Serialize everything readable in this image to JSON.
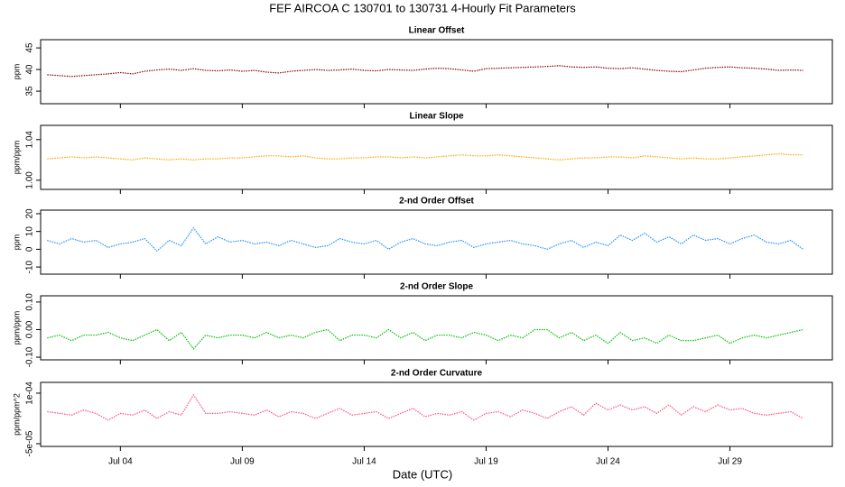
{
  "title": "FEF   AIRCOA C   130701 to 130731   4-Hourly Fit Parameters",
  "x_label": "Date (UTC)",
  "chart_data": [
    {
      "type": "line",
      "title": "Linear Offset",
      "y_label": "ppm",
      "x": [
        1,
        1.5,
        2,
        2.5,
        3,
        3.5,
        4,
        4.5,
        5,
        5.5,
        6,
        6.5,
        7,
        7.5,
        8,
        8.5,
        9,
        9.5,
        10,
        10.5,
        11,
        11.5,
        12,
        12.5,
        13,
        13.5,
        14,
        14.5,
        15,
        15.5,
        16,
        16.5,
        17,
        17.5,
        18,
        18.5,
        19,
        19.5,
        20,
        20.5,
        21,
        21.5,
        22,
        22.5,
        23,
        23.5,
        24,
        24.5,
        25,
        25.5,
        26,
        26.5,
        27,
        27.5,
        28,
        28.5,
        29,
        29.5,
        30,
        30.5,
        31,
        31.5,
        32
      ],
      "values": [
        38.8,
        38.6,
        38.4,
        38.6,
        38.8,
        39.0,
        39.3,
        39.0,
        39.6,
        39.9,
        40.1,
        39.8,
        40.2,
        39.8,
        39.7,
        39.9,
        39.6,
        39.8,
        39.4,
        39.2,
        39.6,
        39.8,
        40.0,
        39.8,
        39.9,
        40.1,
        39.8,
        39.7,
        40.0,
        39.9,
        39.8,
        40.1,
        40.3,
        40.2,
        39.9,
        39.6,
        40.2,
        40.3,
        40.4,
        40.5,
        40.6,
        40.7,
        40.9,
        40.6,
        40.5,
        40.6,
        40.3,
        40.2,
        40.4,
        40.1,
        39.8,
        39.6,
        39.5,
        39.9,
        40.3,
        40.5,
        40.6,
        40.4,
        40.3,
        40.1,
        39.8,
        39.9,
        39.8
      ],
      "color": "#8b0000",
      "xlim": [
        0.73,
        33.2
      ],
      "ylim": [
        32.1,
        46.9
      ],
      "yticks": [
        35,
        40,
        45
      ]
    },
    {
      "type": "line",
      "title": "Linear Slope",
      "y_label": "ppm/ppm",
      "x": [
        1,
        1.5,
        2,
        2.5,
        3,
        3.5,
        4,
        4.5,
        5,
        5.5,
        6,
        6.5,
        7,
        7.5,
        8,
        8.5,
        9,
        9.5,
        10,
        10.5,
        11,
        11.5,
        12,
        12.5,
        13,
        13.5,
        14,
        14.5,
        15,
        15.5,
        16,
        16.5,
        17,
        17.5,
        18,
        18.5,
        19,
        19.5,
        20,
        20.5,
        21,
        21.5,
        22,
        22.5,
        23,
        23.5,
        24,
        24.5,
        25,
        25.5,
        26,
        26.5,
        27,
        27.5,
        28,
        28.5,
        29,
        29.5,
        30,
        30.5,
        31,
        31.5,
        32
      ],
      "values": [
        1.021,
        1.022,
        1.023,
        1.022,
        1.023,
        1.022,
        1.021,
        1.02,
        1.022,
        1.021,
        1.02,
        1.021,
        1.02,
        1.021,
        1.021,
        1.022,
        1.022,
        1.023,
        1.024,
        1.024,
        1.023,
        1.024,
        1.022,
        1.021,
        1.021,
        1.022,
        1.022,
        1.023,
        1.023,
        1.022,
        1.023,
        1.022,
        1.023,
        1.024,
        1.025,
        1.024,
        1.024,
        1.025,
        1.024,
        1.023,
        1.022,
        1.021,
        1.02,
        1.021,
        1.022,
        1.022,
        1.023,
        1.023,
        1.022,
        1.024,
        1.023,
        1.022,
        1.021,
        1.022,
        1.021,
        1.021,
        1.022,
        1.023,
        1.024,
        1.025,
        1.026,
        1.025,
        1.025
      ],
      "color": "#ffa500",
      "xlim": [
        0.73,
        33.2
      ],
      "ylim": [
        0.991,
        1.054
      ],
      "yticks": [
        {
          "value": 1,
          "label": "1.00"
        },
        {
          "value": 1.04,
          "label": "1.04"
        }
      ]
    },
    {
      "type": "line",
      "title": "2-nd Order Offset",
      "y_label": "ppm",
      "x": [
        1,
        1.5,
        2,
        2.5,
        3,
        3.5,
        4,
        4.5,
        5,
        5.5,
        6,
        6.5,
        7,
        7.5,
        8,
        8.5,
        9,
        9.5,
        10,
        10.5,
        11,
        11.5,
        12,
        12.5,
        13,
        13.5,
        14,
        14.5,
        15,
        15.5,
        16,
        16.5,
        17,
        17.5,
        18,
        18.5,
        19,
        19.5,
        20,
        20.5,
        21,
        21.5,
        22,
        22.5,
        23,
        23.5,
        24,
        24.5,
        25,
        25.5,
        26,
        26.5,
        27,
        27.5,
        28,
        28.5,
        29,
        29.5,
        30,
        30.5,
        31,
        31.5,
        32
      ],
      "values": [
        5,
        3,
        6,
        4,
        5,
        1,
        3,
        4,
        6,
        -1,
        5,
        2,
        12,
        3,
        7,
        4,
        5,
        3,
        4,
        2,
        5,
        3,
        1,
        2,
        6,
        4,
        3,
        5,
        0,
        4,
        6,
        3,
        2,
        4,
        5,
        1,
        3,
        4,
        5,
        3,
        2,
        0,
        3,
        5,
        1,
        4,
        2,
        8,
        5,
        9,
        4,
        7,
        3,
        8,
        5,
        6,
        3,
        6,
        8,
        4,
        3,
        5,
        0
      ],
      "color": "#1e90ff",
      "xlim": [
        0.73,
        33.2
      ],
      "ylim": [
        -14,
        22
      ],
      "yticks": [
        -10,
        0,
        10,
        20
      ]
    },
    {
      "type": "line",
      "title": "2-nd Order Slope",
      "y_label": "ppm/ppm",
      "x": [
        1,
        1.5,
        2,
        2.5,
        3,
        3.5,
        4,
        4.5,
        5,
        5.5,
        6,
        6.5,
        7,
        7.5,
        8,
        8.5,
        9,
        9.5,
        10,
        10.5,
        11,
        11.5,
        12,
        12.5,
        13,
        13.5,
        14,
        14.5,
        15,
        15.5,
        16,
        16.5,
        17,
        17.5,
        18,
        18.5,
        19,
        19.5,
        20,
        20.5,
        21,
        21.5,
        22,
        22.5,
        23,
        23.5,
        24,
        24.5,
        25,
        25.5,
        26,
        26.5,
        27,
        27.5,
        28,
        28.5,
        29,
        29.5,
        30,
        30.5,
        31,
        31.5,
        32
      ],
      "values": [
        -0.03,
        -0.02,
        -0.04,
        -0.02,
        -0.02,
        -0.01,
        -0.03,
        -0.04,
        -0.02,
        0,
        -0.04,
        -0.01,
        -0.07,
        -0.02,
        -0.03,
        -0.02,
        -0.02,
        -0.03,
        -0.01,
        -0.03,
        -0.02,
        -0.03,
        -0.01,
        0,
        -0.04,
        -0.02,
        -0.02,
        -0.03,
        0,
        -0.03,
        -0.01,
        -0.04,
        -0.02,
        -0.02,
        -0.03,
        -0.01,
        -0.02,
        -0.04,
        -0.02,
        -0.03,
        0,
        0,
        -0.03,
        -0.01,
        -0.04,
        -0.02,
        -0.05,
        -0.01,
        -0.04,
        -0.03,
        -0.05,
        -0.02,
        -0.04,
        -0.04,
        -0.03,
        -0.02,
        -0.05,
        -0.03,
        -0.02,
        -0.03,
        -0.02,
        -0.01,
        0
      ],
      "color": "#00c000",
      "xlim": [
        0.73,
        33.2
      ],
      "ylim": [
        -0.1097,
        0.1226
      ],
      "yticks": [
        {
          "value": -0.1,
          "label": "-0.10"
        },
        {
          "value": 0,
          "label": "0.00"
        },
        {
          "value": 0.1,
          "label": "0.10"
        }
      ]
    },
    {
      "type": "line",
      "title": "2-nd Order Curvature",
      "y_label": "ppm/ppm^2",
      "x": [
        1,
        1.5,
        2,
        2.5,
        3,
        3.5,
        4,
        4.5,
        5,
        5.5,
        6,
        6.5,
        7,
        7.5,
        8,
        8.5,
        9,
        9.5,
        10,
        10.5,
        11,
        11.5,
        12,
        12.5,
        13,
        13.5,
        14,
        14.5,
        15,
        15.5,
        16,
        16.5,
        17,
        17.5,
        18,
        18.5,
        19,
        19.5,
        20,
        20.5,
        21,
        21.5,
        22,
        22.5,
        23,
        23.5,
        24,
        24.5,
        25,
        25.5,
        26,
        26.5,
        27,
        27.5,
        28,
        28.5,
        29,
        29.5,
        30,
        30.5,
        31,
        31.5,
        32
      ],
      "values": [
        4.5e-05,
        4e-05,
        3.5e-05,
        5e-05,
        4e-05,
        2e-05,
        4e-05,
        3.5e-05,
        5e-05,
        2.5e-05,
        4.5e-05,
        3.5e-05,
        9.5e-05,
        4e-05,
        4e-05,
        4.5e-05,
        4e-05,
        3.5e-05,
        5e-05,
        3e-05,
        4.5e-05,
        4e-05,
        2.5e-05,
        4e-05,
        5.5e-05,
        3.5e-05,
        4e-05,
        4.5e-05,
        2.5e-05,
        4e-05,
        5.5e-05,
        3e-05,
        4e-05,
        3.5e-05,
        4.5e-05,
        2e-05,
        4e-05,
        4.5e-05,
        3e-05,
        5e-05,
        4e-05,
        2.5e-05,
        4.5e-05,
        6e-05,
        3.5e-05,
        7e-05,
        5e-05,
        6.5e-05,
        5e-05,
        6e-05,
        4e-05,
        6.5e-05,
        3.5e-05,
        6e-05,
        4.5e-05,
        6.5e-05,
        5e-05,
        5.5e-05,
        4e-05,
        3.5e-05,
        4e-05,
        4.5e-05,
        2.5e-05
      ],
      "color": "#ff4f7a",
      "xlim": [
        0.73,
        33.2
      ],
      "ylim": [
        -5.8e-05,
        0.000132
      ],
      "yticks": [
        {
          "value": 0.0001,
          "label": "1e-04"
        },
        {
          "value": -5e-05,
          "label": "-5e-05"
        }
      ],
      "xticks": [
        {
          "value": 4,
          "label": "Jul 04"
        },
        {
          "value": 9,
          "label": "Jul 09"
        },
        {
          "value": 14,
          "label": "Jul 14"
        },
        {
          "value": 19,
          "label": "Jul 19"
        },
        {
          "value": 24,
          "label": "Jul 24"
        },
        {
          "value": 29,
          "label": "Jul 29"
        }
      ]
    }
  ]
}
